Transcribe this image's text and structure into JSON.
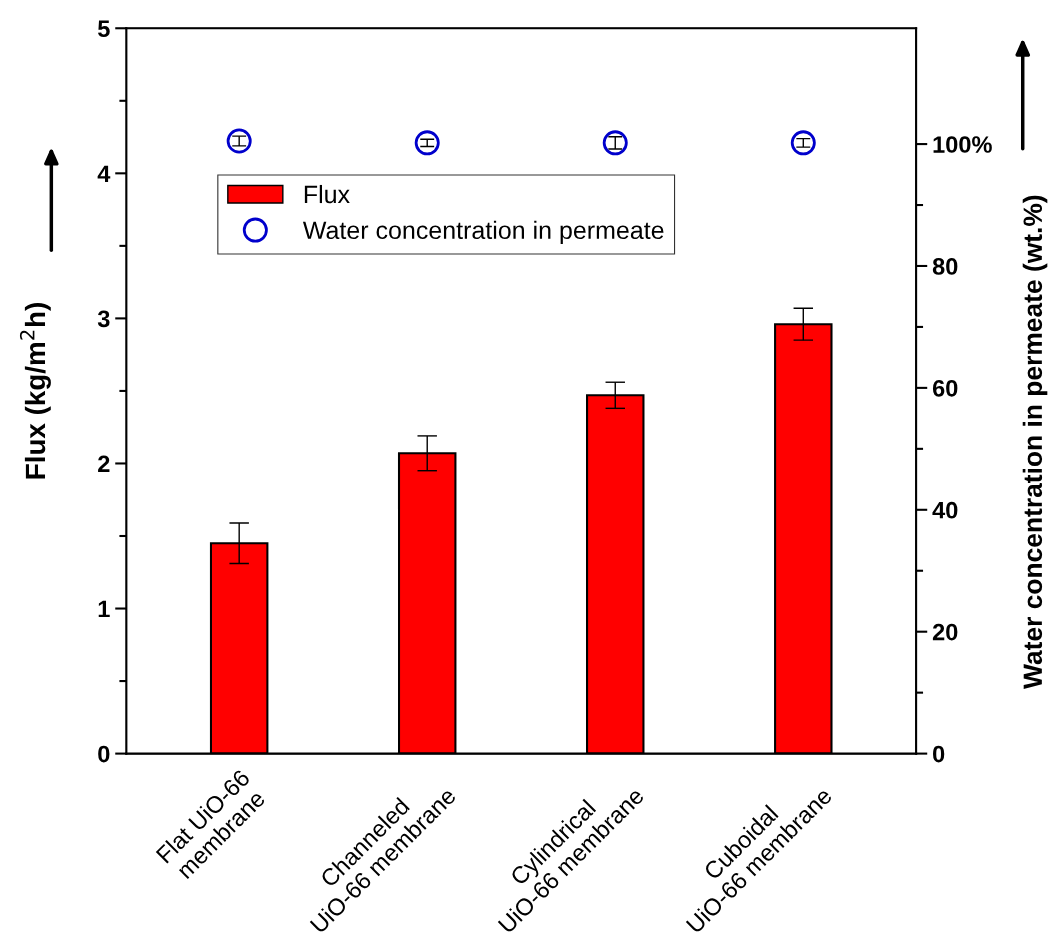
{
  "chart_data": {
    "type": "bar",
    "categories": [
      "Flat UiO-66\nmembrane",
      "Channeled\nUiO-66 membrane",
      "Cylindrical\nUiO-66 membrane",
      "Cuboidal\nUiO-66 membrane"
    ],
    "ylabel": "Flux (kg/m$^{2}$h)",
    "y2label": "Water concentration in permeate (wt.%)",
    "series": [
      {
        "name": "Flux",
        "color": "#ff0000",
        "values": [
          1.45,
          2.07,
          2.47,
          2.96
        ],
        "errors": [
          0.14,
          0.12,
          0.09,
          0.11
        ]
      },
      {
        "name": "Water concentration in permeate",
        "type": "scatter",
        "axis": "y2",
        "color": "#0000cc",
        "values": [
          100.5,
          100.2,
          100.2,
          100.2
        ],
        "errors": [
          0.8,
          0.6,
          1.0,
          0.7
        ]
      }
    ],
    "ylim": [
      0,
      5
    ],
    "yticks": [
      0,
      1,
      2,
      3,
      4,
      5
    ],
    "y2lim": [
      0,
      119
    ],
    "y2ticks": [
      0,
      20,
      40,
      60,
      80,
      {
        "value": 100,
        "label": "100%"
      }
    ],
    "marker": "circle",
    "legend": "top left",
    "grid": false
  }
}
